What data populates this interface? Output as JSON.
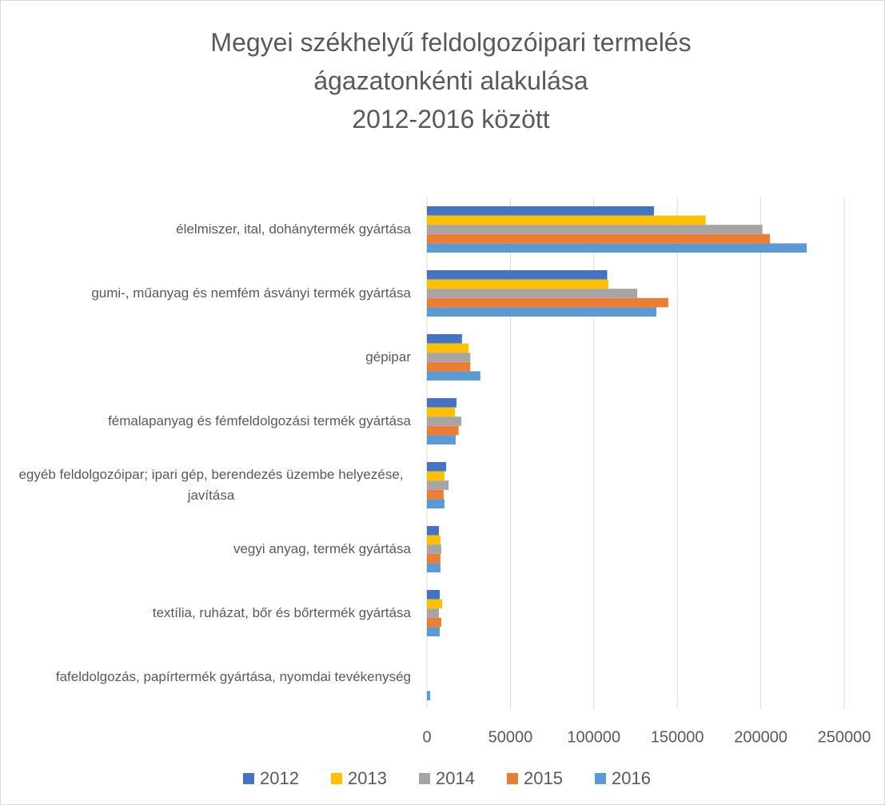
{
  "chart_data": {
    "type": "barh",
    "title": "Megyei székhelyű feldolgozóipari termelés\nágazatonkénti alakulása\n2012-2016 között",
    "categories": [
      "élelmiszer, ital, dohánytermék gyártása",
      "gumi-, műanyag és nemfém ásványi termék gyártása",
      "gépipar",
      "fémalapanyag és fémfeldolgozási termék gyártása",
      "egyéb feldolgozóipar; ipari gép, berendezés üzembe helyezése, javítása",
      "vegyi anyag, termék gyártása",
      "textília, ruházat, bőr és bőrtermék gyártása",
      "fafeldolgozás, papírtermék gyártása, nyomdai tevékenység"
    ],
    "series": [
      {
        "name": "2012",
        "color": "#4472c4",
        "values": [
          136000,
          108000,
          21000,
          17700,
          11500,
          7200,
          7700,
          null
        ]
      },
      {
        "name": "2013",
        "color": "#ffc000",
        "values": [
          167000,
          108700,
          25000,
          16800,
          10500,
          8100,
          9100,
          null
        ]
      },
      {
        "name": "2014",
        "color": "#a5a5a5",
        "values": [
          201000,
          126000,
          26000,
          20600,
          13000,
          8600,
          7200,
          null
        ]
      },
      {
        "name": "2015",
        "color": "#ed7d31",
        "values": [
          205500,
          144600,
          26000,
          19000,
          10000,
          8100,
          8600,
          null
        ]
      },
      {
        "name": "2016",
        "color": "#5b9bd5",
        "values": [
          227500,
          137500,
          32000,
          17200,
          10500,
          8100,
          7700,
          2000
        ]
      }
    ],
    "xlim": [
      0,
      250000
    ],
    "xticks": [
      0,
      50000,
      100000,
      150000,
      200000,
      250000
    ],
    "grid": true,
    "legend": "bottom"
  }
}
